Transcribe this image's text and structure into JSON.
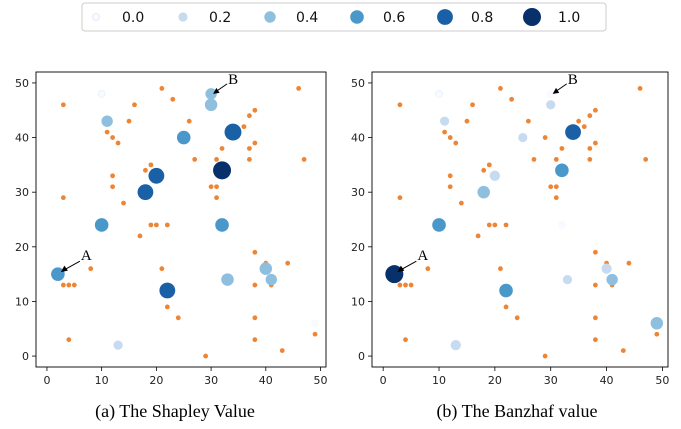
{
  "legend": {
    "items": [
      {
        "label": "0.0",
        "color": "#f7fbff",
        "size": 0.0
      },
      {
        "label": "0.2",
        "color": "#c6dbef",
        "size": 0.2
      },
      {
        "label": "0.4",
        "color": "#8fbfdf",
        "size": 0.4
      },
      {
        "label": "0.6",
        "color": "#4a98c9",
        "size": 0.6
      },
      {
        "label": "0.8",
        "color": "#1a60a6",
        "size": 0.8
      },
      {
        "label": "1.0",
        "color": "#08306b",
        "size": 1.0
      }
    ]
  },
  "colors": {
    "orange": "#ee8535",
    "axis": "#000000"
  },
  "chart_data": [
    {
      "type": "scatter",
      "caption": "(a) The Shapley Value",
      "xlim": [
        -2,
        51
      ],
      "ylim": [
        -2,
        52
      ],
      "xticks": [
        0,
        10,
        20,
        30,
        40,
        50
      ],
      "yticks": [
        0,
        10,
        20,
        30,
        40,
        50
      ],
      "annotations": [
        {
          "text": "A",
          "target": [
            2,
            15
          ]
        },
        {
          "text": "B",
          "target": [
            30,
            48
          ]
        }
      ],
      "orange_points": [
        [
          3,
          46
        ],
        [
          5,
          13
        ],
        [
          8,
          16
        ],
        [
          11,
          41
        ],
        [
          12,
          40
        ],
        [
          12,
          33
        ],
        [
          12,
          31
        ],
        [
          13,
          39
        ],
        [
          14,
          28
        ],
        [
          15,
          43
        ],
        [
          16,
          46
        ],
        [
          18,
          34
        ],
        [
          19,
          35
        ],
        [
          20,
          24
        ],
        [
          21,
          49
        ],
        [
          21,
          16
        ],
        [
          22,
          9
        ],
        [
          22,
          24
        ],
        [
          23,
          47
        ],
        [
          24,
          7
        ],
        [
          26,
          43
        ],
        [
          27,
          36
        ],
        [
          29,
          0
        ],
        [
          30,
          31
        ],
        [
          31,
          31
        ],
        [
          31,
          29
        ],
        [
          31,
          36
        ],
        [
          32,
          38
        ],
        [
          36,
          42
        ],
        [
          37,
          36
        ],
        [
          37,
          38
        ],
        [
          37,
          44
        ],
        [
          38,
          45
        ],
        [
          38,
          39
        ],
        [
          38,
          19
        ],
        [
          38,
          13
        ],
        [
          38,
          7
        ],
        [
          38,
          3
        ],
        [
          40,
          17
        ],
        [
          41,
          13
        ],
        [
          43,
          1
        ],
        [
          44,
          17
        ],
        [
          46,
          49
        ],
        [
          47,
          36
        ],
        [
          49,
          4
        ],
        [
          3,
          29
        ],
        [
          4,
          3
        ],
        [
          4,
          13
        ],
        [
          3,
          13
        ],
        [
          17,
          22
        ],
        [
          10,
          24
        ],
        [
          19,
          24
        ]
      ],
      "blue_points": [
        {
          "x": 2,
          "y": 15,
          "v": 0.6
        },
        {
          "x": 10,
          "y": 24,
          "v": 0.6
        },
        {
          "x": 11,
          "y": 43,
          "v": 0.4
        },
        {
          "x": 10,
          "y": 48,
          "v": 0.0
        },
        {
          "x": 13,
          "y": 2,
          "v": 0.2
        },
        {
          "x": 18,
          "y": 30,
          "v": 0.8
        },
        {
          "x": 20,
          "y": 33,
          "v": 0.8
        },
        {
          "x": 22,
          "y": 12,
          "v": 0.8
        },
        {
          "x": 25,
          "y": 40,
          "v": 0.6
        },
        {
          "x": 30,
          "y": 46,
          "v": 0.5
        },
        {
          "x": 30,
          "y": 48,
          "v": 0.4
        },
        {
          "x": 32,
          "y": 34,
          "v": 1.0
        },
        {
          "x": 34,
          "y": 41,
          "v": 0.9
        },
        {
          "x": 32,
          "y": 24,
          "v": 0.6
        },
        {
          "x": 33,
          "y": 14,
          "v": 0.5
        },
        {
          "x": 40,
          "y": 16,
          "v": 0.5
        },
        {
          "x": 41,
          "y": 14,
          "v": 0.4
        },
        {
          "x": 49,
          "y": 6,
          "v": 0.1
        }
      ]
    },
    {
      "type": "scatter",
      "caption": "(b) The Banzhaf value",
      "xlim": [
        -2,
        51
      ],
      "ylim": [
        -2,
        52
      ],
      "xticks": [
        0,
        10,
        20,
        30,
        40,
        50
      ],
      "yticks": [
        0,
        10,
        20,
        30,
        40,
        50
      ],
      "annotations": [
        {
          "text": "A",
          "target": [
            2,
            15
          ]
        },
        {
          "text": "B",
          "target": [
            30,
            48
          ]
        }
      ],
      "orange_points": [
        [
          3,
          46
        ],
        [
          5,
          13
        ],
        [
          8,
          16
        ],
        [
          11,
          41
        ],
        [
          12,
          40
        ],
        [
          12,
          33
        ],
        [
          12,
          31
        ],
        [
          13,
          39
        ],
        [
          14,
          28
        ],
        [
          15,
          43
        ],
        [
          16,
          46
        ],
        [
          18,
          34
        ],
        [
          19,
          35
        ],
        [
          20,
          24
        ],
        [
          21,
          49
        ],
        [
          21,
          16
        ],
        [
          22,
          9
        ],
        [
          22,
          24
        ],
        [
          23,
          47
        ],
        [
          24,
          7
        ],
        [
          26,
          43
        ],
        [
          27,
          36
        ],
        [
          29,
          0
        ],
        [
          29,
          40
        ],
        [
          30,
          31
        ],
        [
          31,
          31
        ],
        [
          31,
          29
        ],
        [
          31,
          36
        ],
        [
          32,
          38
        ],
        [
          35,
          43
        ],
        [
          36,
          42
        ],
        [
          37,
          36
        ],
        [
          37,
          38
        ],
        [
          37,
          44
        ],
        [
          38,
          45
        ],
        [
          38,
          39
        ],
        [
          38,
          19
        ],
        [
          38,
          13
        ],
        [
          38,
          7
        ],
        [
          38,
          3
        ],
        [
          40,
          17
        ],
        [
          41,
          13
        ],
        [
          43,
          1
        ],
        [
          44,
          17
        ],
        [
          46,
          49
        ],
        [
          47,
          36
        ],
        [
          49,
          4
        ],
        [
          3,
          29
        ],
        [
          4,
          3
        ],
        [
          4,
          13
        ],
        [
          3,
          13
        ],
        [
          3,
          15
        ],
        [
          17,
          22
        ],
        [
          10,
          24
        ],
        [
          19,
          24
        ]
      ],
      "blue_points": [
        {
          "x": 2,
          "y": 15,
          "v": 1.0
        },
        {
          "x": 10,
          "y": 24,
          "v": 0.6
        },
        {
          "x": 11,
          "y": 43,
          "v": 0.2
        },
        {
          "x": 10,
          "y": 48,
          "v": 0.0
        },
        {
          "x": 13,
          "y": 2,
          "v": 0.3
        },
        {
          "x": 18,
          "y": 30,
          "v": 0.5
        },
        {
          "x": 20,
          "y": 33,
          "v": 0.3
        },
        {
          "x": 22,
          "y": 12,
          "v": 0.6
        },
        {
          "x": 25,
          "y": 40,
          "v": 0.2
        },
        {
          "x": 30,
          "y": 46,
          "v": 0.2
        },
        {
          "x": 30,
          "y": 48,
          "v": 0.1
        },
        {
          "x": 32,
          "y": 34,
          "v": 0.6
        },
        {
          "x": 34,
          "y": 41,
          "v": 0.8
        },
        {
          "x": 32,
          "y": 24,
          "v": 0.1
        },
        {
          "x": 33,
          "y": 14,
          "v": 0.2
        },
        {
          "x": 40,
          "y": 16,
          "v": 0.3
        },
        {
          "x": 41,
          "y": 14,
          "v": 0.4
        },
        {
          "x": 49,
          "y": 6,
          "v": 0.5
        }
      ]
    }
  ]
}
